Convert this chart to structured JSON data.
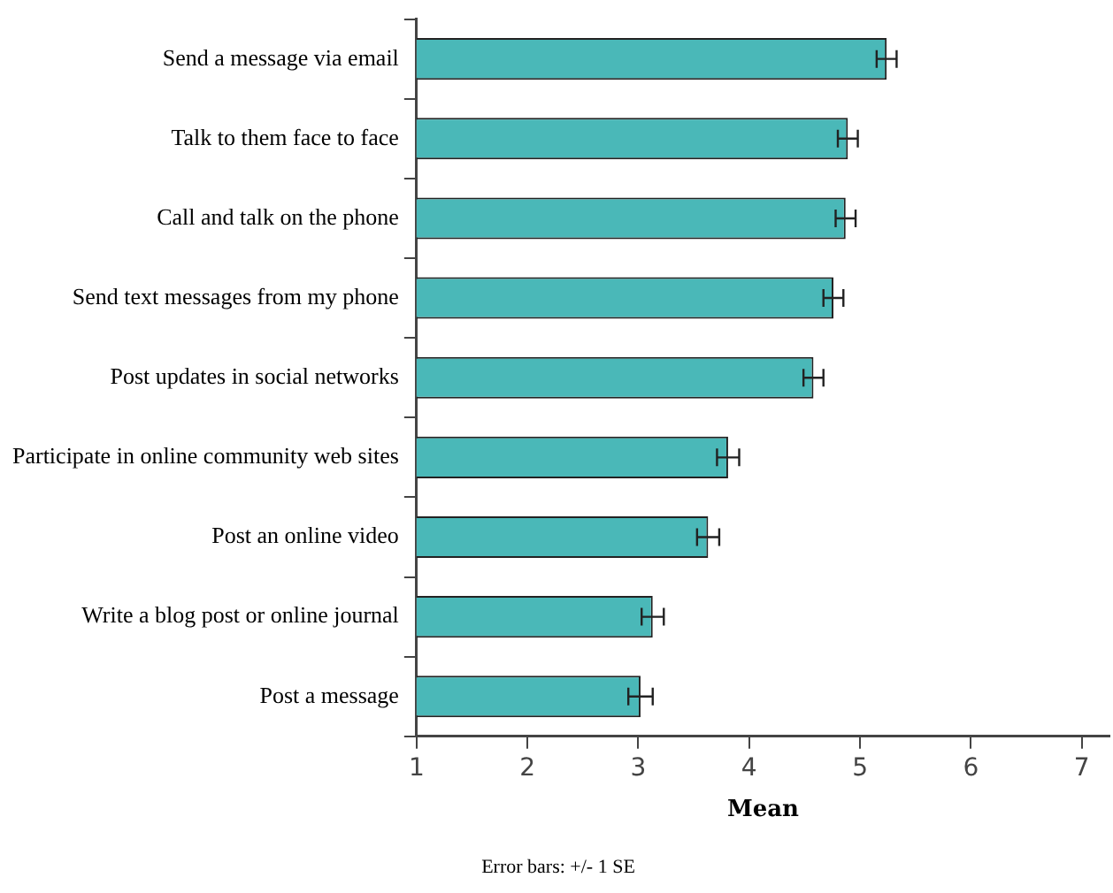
{
  "chart_data": {
    "type": "bar",
    "orientation": "horizontal",
    "categories": [
      "Send a message via email",
      "Talk to them face to face",
      "Call and talk on the phone",
      "Send text messages from my phone",
      "Post updates in social networks",
      "Participate in online community web sites",
      "Post an online video",
      "Write a blog post or online journal",
      "Post a message"
    ],
    "values": [
      5.24,
      4.89,
      4.87,
      4.76,
      4.58,
      3.81,
      3.63,
      3.13,
      3.02
    ],
    "errors": [
      0.09,
      0.09,
      0.09,
      0.09,
      0.09,
      0.1,
      0.1,
      0.1,
      0.11
    ],
    "color": "#4ab8b8",
    "xlim": [
      1,
      7.25
    ],
    "xticks": [
      1,
      2,
      3,
      4,
      5,
      6,
      7
    ],
    "xlabel": "Mean",
    "annotations": [
      "Error bars: +/- 1 SE"
    ]
  }
}
